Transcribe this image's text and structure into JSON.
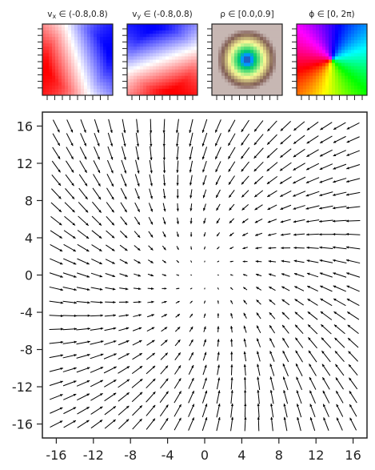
{
  "chart_data": [
    {
      "type": "heatmap",
      "panel": "vx",
      "title": "v_x ∈ (-0.8,0.8)",
      "title_var": "v",
      "title_sub": "x",
      "title_range": " ∈ (-0.8,0.8)",
      "colormap": "bwr",
      "vmin": -0.8,
      "vmax": 0.8
    },
    {
      "type": "heatmap",
      "panel": "vy",
      "title": "v_y ∈ (-0.8,0.8)",
      "title_var": "v",
      "title_sub": "y",
      "title_range": " ∈ (-0.8,0.8)",
      "colormap": "bwr",
      "vmin": -0.8,
      "vmax": 0.8
    },
    {
      "type": "heatmap",
      "panel": "rho",
      "title": "ρ ∈ [0.0,0.9]",
      "title_var": "ρ",
      "title_sub": "",
      "title_range": " ∈ [0.0,0.9]",
      "colormap": "terrain",
      "vmin": 0.0,
      "vmax": 0.9
    },
    {
      "type": "heatmap",
      "panel": "phi",
      "title": "ϕ ∈ [0, 2π)",
      "title_var": "ϕ",
      "title_sub": "",
      "title_range": " ∈ [0, 2π)",
      "colormap": "hsv",
      "vmin": 0,
      "vmax": 6.283
    },
    {
      "type": "quiver",
      "title": "",
      "xlabel": "",
      "ylabel": "",
      "xlim": [
        -17.5,
        17.5
      ],
      "ylim": [
        -17.5,
        17.5
      ],
      "xticks": [
        -16,
        -12,
        -8,
        -4,
        0,
        4,
        8,
        12,
        16
      ],
      "yticks": [
        -16,
        -12,
        -8,
        -4,
        0,
        4,
        8,
        12,
        16
      ],
      "xtick_labels": [
        "-16",
        "-12",
        "-8",
        "-4",
        "0",
        "4",
        "8",
        "12",
        "16"
      ],
      "ytick_labels": [
        "16",
        "12",
        "8",
        "4",
        "0",
        "-4",
        "-8",
        "-12",
        "-16"
      ],
      "grid": {
        "x_start": -16,
        "x_end": 16,
        "y_start": -16,
        "y_end": 16,
        "step": 1.4545
      },
      "field": {
        "description": "sink at origin with swirl",
        "center": [
          0,
          0
        ],
        "radial_gain": -0.055,
        "tangential_gain": 0.018,
        "max_magnitude": 0.8
      },
      "arrow_color": "#000000"
    }
  ]
}
